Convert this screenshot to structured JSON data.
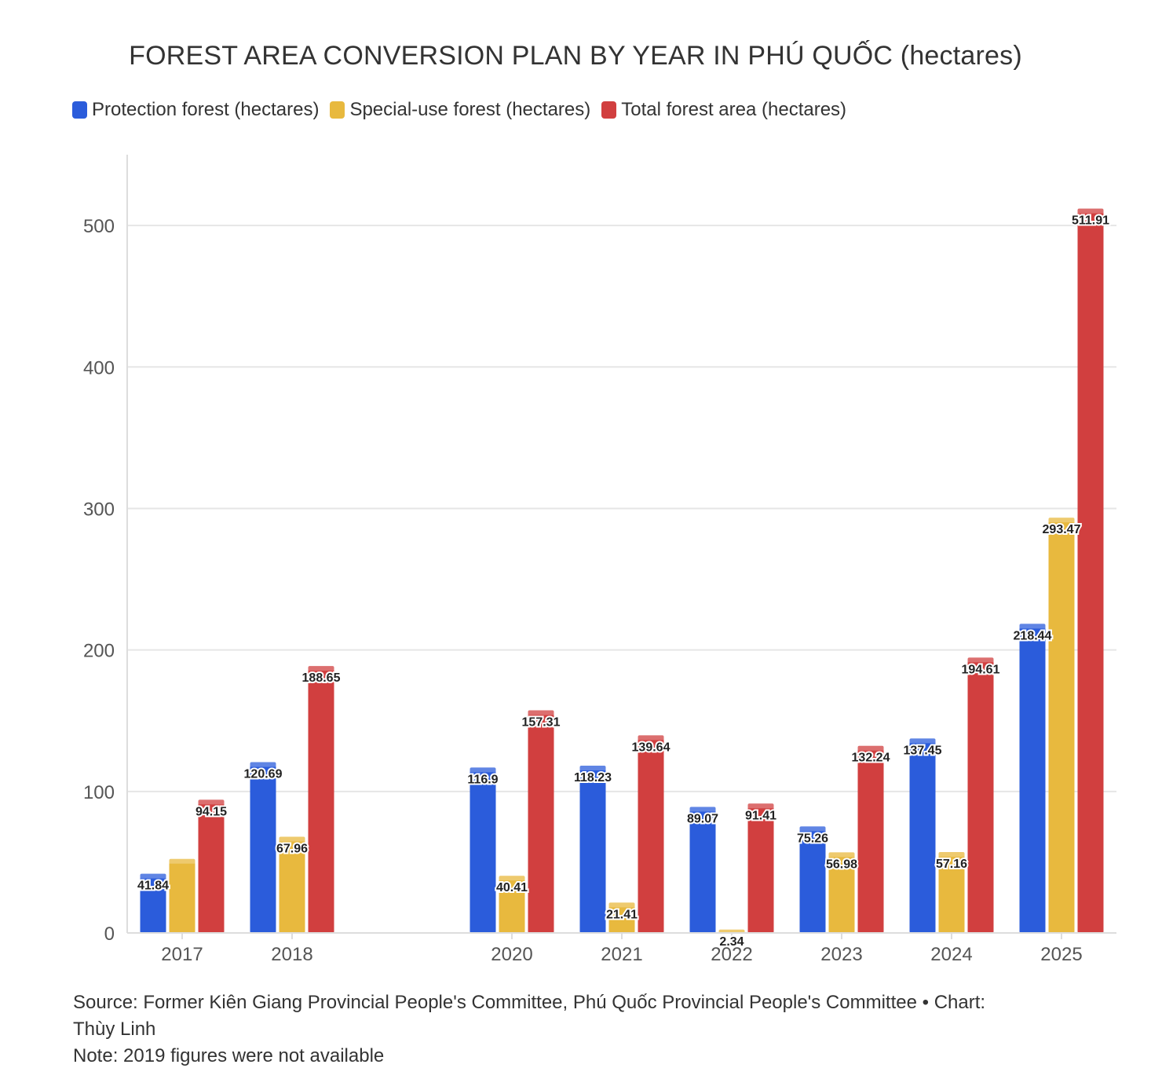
{
  "chart_data": {
    "type": "bar",
    "title": "FOREST AREA CONVERSION PLAN BY YEAR IN PHÚ QUỐC (hectares)",
    "categories": [
      "2017",
      "2018",
      "2020",
      "2021",
      "2022",
      "2023",
      "2024",
      "2025"
    ],
    "category_x": [
      2017,
      2018,
      2020,
      2021,
      2022,
      2023,
      2024,
      2025
    ],
    "series": [
      {
        "name": "Protection forest (hectares)",
        "color": "#2b5cdb",
        "values": [
          41.84,
          120.69,
          116.9,
          118.23,
          89.07,
          75.26,
          137.45,
          218.44
        ],
        "labels": [
          "41.84",
          "120.69",
          "116.9",
          "118.23",
          "89.07",
          "75.26",
          "137.45",
          "218.44"
        ]
      },
      {
        "name": "Special-use forest (hectares)",
        "color": "#e8b93e",
        "values": [
          52.31,
          67.96,
          40.41,
          21.41,
          2.34,
          56.98,
          57.16,
          293.47
        ],
        "labels": [
          "",
          "67.96",
          "40.41",
          "21.41",
          "2.34",
          "56.98",
          "57.16",
          "293.47"
        ]
      },
      {
        "name": "Total forest area (hectares)",
        "color": "#d13f3f",
        "values": [
          94.15,
          188.65,
          157.31,
          139.64,
          91.41,
          132.24,
          194.61,
          511.91
        ],
        "labels": [
          "94.15",
          "188.65",
          "157.31",
          "139.64",
          "91.41",
          "132.24",
          "194.61",
          "511.91"
        ]
      }
    ],
    "y_ticks": [
      "0",
      "100",
      "200",
      "300",
      "400",
      "500"
    ],
    "ylim": [
      0,
      550
    ],
    "grid": true,
    "legend_position": "top-left"
  },
  "footer": {
    "source_line1": "Source: Former Kiên Giang Provincial People's Committee, Phú Quốc Provincial People's Committee • Chart:",
    "source_line2": "Thùy Linh",
    "note": "Note: 2019 figures were not available"
  }
}
